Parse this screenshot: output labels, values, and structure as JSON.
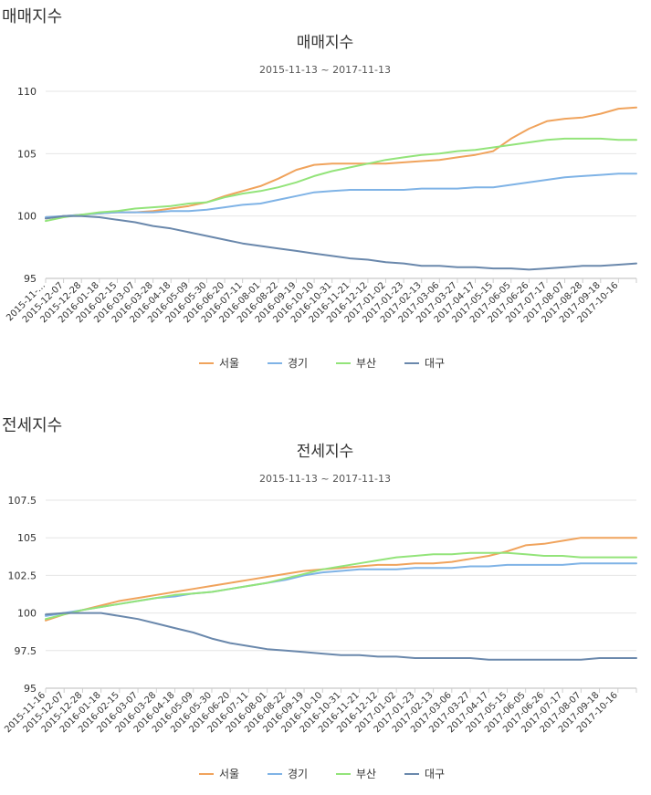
{
  "charts": [
    {
      "section_heading": "매매지수",
      "chart_data": {
        "type": "line",
        "title": "매매지수",
        "subtitle": "2015-11-13 ~ 2017-11-13",
        "xlabel": "",
        "ylabel": "",
        "ylim": [
          95,
          110
        ],
        "yticks": [
          "95",
          "100",
          "105",
          "110"
        ],
        "ytick_values": [
          95,
          100,
          105,
          110
        ],
        "categories": [
          "2015-11-…",
          "2015-12-07",
          "2015-12-28",
          "2016-01-18",
          "2016-02-15",
          "2016-03-07",
          "2016-03-28",
          "2016-04-18",
          "2016-05-09",
          "2016-05-30",
          "2016-06-20",
          "2016-07-11",
          "2016-08-01",
          "2016-08-22",
          "2016-09-19",
          "2016-10-10",
          "2016-10-31",
          "2016-11-21",
          "2016-12-12",
          "2017-01-02",
          "2017-01-23",
          "2017-02-13",
          "2017-03-06",
          "2017-03-27",
          "2017-04-17",
          "2017-05-15",
          "2017-06-05",
          "2017-06-26",
          "2017-07-17",
          "2017-08-07",
          "2017-08-28",
          "2017-09-18",
          "2017-10-16",
          ""
        ],
        "legend_position": "bottom-center",
        "grid": true,
        "series": [
          {
            "name": "서울",
            "color": "#f0a35c",
            "values": [
              99.8,
              100.0,
              100.1,
              100.2,
              100.3,
              100.3,
              100.4,
              100.6,
              100.8,
              101.1,
              101.6,
              102.0,
              102.4,
              103.0,
              103.7,
              104.1,
              104.2,
              104.2,
              104.2,
              104.2,
              104.3,
              104.4,
              104.5,
              104.7,
              104.9,
              105.2,
              106.2,
              107.0,
              107.6,
              107.8,
              107.9,
              108.2,
              108.6,
              108.7
            ]
          },
          {
            "name": "경기",
            "color": "#7fb3e6",
            "values": [
              99.9,
              100.0,
              100.1,
              100.2,
              100.3,
              100.3,
              100.3,
              100.4,
              100.4,
              100.5,
              100.7,
              100.9,
              101.0,
              101.3,
              101.6,
              101.9,
              102.0,
              102.1,
              102.1,
              102.1,
              102.1,
              102.2,
              102.2,
              102.2,
              102.3,
              102.3,
              102.5,
              102.7,
              102.9,
              103.1,
              103.2,
              103.3,
              103.4,
              103.4
            ]
          },
          {
            "name": "부산",
            "color": "#93e47a",
            "values": [
              99.6,
              99.9,
              100.1,
              100.3,
              100.4,
              100.6,
              100.7,
              100.8,
              101.0,
              101.1,
              101.5,
              101.8,
              102.0,
              102.3,
              102.7,
              103.2,
              103.6,
              103.9,
              104.2,
              104.5,
              104.7,
              104.9,
              105.0,
              105.2,
              105.3,
              105.5,
              105.7,
              105.9,
              106.1,
              106.2,
              106.2,
              106.2,
              106.1,
              106.1
            ]
          },
          {
            "name": "대구",
            "color": "#6a88ac",
            "values": [
              99.8,
              100.0,
              100.0,
              99.9,
              99.7,
              99.5,
              99.2,
              99.0,
              98.7,
              98.4,
              98.1,
              97.8,
              97.6,
              97.4,
              97.2,
              97.0,
              96.8,
              96.6,
              96.5,
              96.3,
              96.2,
              96.0,
              96.0,
              95.9,
              95.9,
              95.8,
              95.8,
              95.7,
              95.8,
              95.9,
              96.0,
              96.0,
              96.1,
              96.2
            ]
          }
        ]
      }
    },
    {
      "section_heading": "전세지수",
      "chart_data": {
        "type": "line",
        "title": "전세지수",
        "subtitle": "2015-11-13 ~ 2017-11-13",
        "xlabel": "",
        "ylabel": "",
        "ylim": [
          95,
          107.5
        ],
        "yticks": [
          "95",
          "97.5",
          "100",
          "102.5",
          "105",
          "107.5"
        ],
        "ytick_values": [
          95,
          97.5,
          100,
          102.5,
          105,
          107.5
        ],
        "categories": [
          "2015-11-16",
          "2015-12-07",
          "2015-12-28",
          "2016-01-18",
          "2016-02-15",
          "2016-03-07",
          "2016-03-28",
          "2016-04-18",
          "2016-05-09",
          "2016-05-30",
          "2016-06-20",
          "2016-07-11",
          "2016-08-01",
          "2016-08-22",
          "2016-09-19",
          "2016-10-10",
          "2016-10-31",
          "2016-11-21",
          "2016-12-12",
          "2017-01-02",
          "2017-01-23",
          "2017-02-13",
          "2017-03-06",
          "2017-03-27",
          "2017-04-17",
          "2017-05-15",
          "2017-06-05",
          "2017-06-26",
          "2017-07-17",
          "2017-08-07",
          "2017-09-18",
          "2017-10-16",
          ""
        ],
        "legend_position": "bottom-center",
        "grid": true,
        "series": [
          {
            "name": "서울",
            "color": "#f0a35c",
            "values": [
              99.5,
              99.9,
              100.2,
              100.5,
              100.8,
              101.0,
              101.2,
              101.4,
              101.6,
              101.8,
              102.0,
              102.2,
              102.4,
              102.6,
              102.8,
              102.9,
              103.0,
              103.1,
              103.2,
              103.2,
              103.3,
              103.3,
              103.4,
              103.6,
              103.8,
              104.1,
              104.5,
              104.6,
              104.8,
              105.0,
              105.0,
              105.0,
              105.0
            ]
          },
          {
            "name": "경기",
            "color": "#7fb3e6",
            "values": [
              99.8,
              100.0,
              100.2,
              100.4,
              100.6,
              100.8,
              101.0,
              101.1,
              101.3,
              101.4,
              101.6,
              101.8,
              102.0,
              102.2,
              102.5,
              102.7,
              102.8,
              102.9,
              102.9,
              102.9,
              103.0,
              103.0,
              103.0,
              103.1,
              103.1,
              103.2,
              103.2,
              103.2,
              103.2,
              103.3,
              103.3,
              103.3,
              103.3
            ]
          },
          {
            "name": "부산",
            "color": "#93e47a",
            "values": [
              99.6,
              99.9,
              100.2,
              100.4,
              100.6,
              100.8,
              101.0,
              101.2,
              101.3,
              101.4,
              101.6,
              101.8,
              102.0,
              102.3,
              102.6,
              102.9,
              103.1,
              103.3,
              103.5,
              103.7,
              103.8,
              103.9,
              103.9,
              104.0,
              104.0,
              104.0,
              103.9,
              103.8,
              103.8,
              103.7,
              103.7,
              103.7,
              103.7
            ]
          },
          {
            "name": "대구",
            "color": "#6a88ac",
            "values": [
              99.9,
              100.0,
              100.0,
              100.0,
              99.8,
              99.6,
              99.3,
              99.0,
              98.7,
              98.3,
              98.0,
              97.8,
              97.6,
              97.5,
              97.4,
              97.3,
              97.2,
              97.2,
              97.1,
              97.1,
              97.0,
              97.0,
              97.0,
              97.0,
              96.9,
              96.9,
              96.9,
              96.9,
              96.9,
              96.9,
              97.0,
              97.0,
              97.0
            ]
          }
        ]
      }
    }
  ]
}
